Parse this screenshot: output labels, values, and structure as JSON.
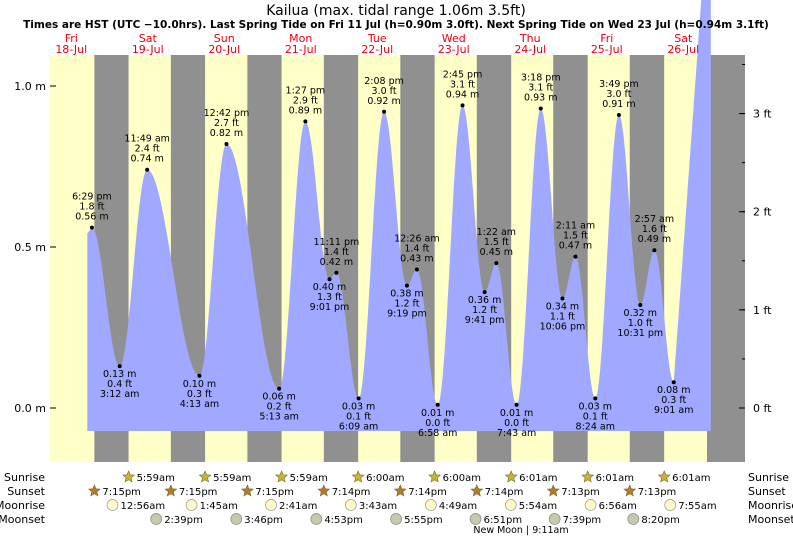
{
  "title": "Kailua (max. tidal range 1.06m 3.5ft)",
  "subtitle": "Times are HST (UTC −10.0hrs). Last Spring Tide on Fri 11 Jul (h=0.90m 3.0ft). Next Spring Tide on Wed 23 Jul (h=0.94m 3.1ft)",
  "colors": {
    "day": "#ffffc8",
    "night": "#909090",
    "tide": "#a0a8ff",
    "day_label": "#e8000c",
    "sun_icon": "#c8b432",
    "sunset_icon": "#b47832",
    "moonrise_icon": "#fffac8",
    "moonset_icon": "#c8c8aa"
  },
  "chart_data": {
    "type": "area",
    "title": "Kailua (max. tidal range 1.06m 3.5ft)",
    "y_left_unit": "m",
    "y_right_unit": "ft",
    "ylim_m": [
      -0.08,
      1.08
    ],
    "left_ticks": [
      "1.0 m",
      "0.5 m",
      "0.0 m"
    ],
    "left_tick_values": [
      1.0,
      0.5,
      0.0
    ],
    "right_ticks": [
      "3 ft",
      "2 ft",
      "1 ft",
      "0 ft"
    ],
    "right_tick_values_ft": [
      3,
      2,
      1,
      0
    ],
    "days": [
      {
        "dow": "Fri",
        "date": "18-Jul"
      },
      {
        "dow": "Sat",
        "date": "19-Jul"
      },
      {
        "dow": "Sun",
        "date": "20-Jul"
      },
      {
        "dow": "Mon",
        "date": "21-Jul"
      },
      {
        "dow": "Tue",
        "date": "22-Jul"
      },
      {
        "dow": "Wed",
        "date": "23-Jul"
      },
      {
        "dow": "Thu",
        "date": "24-Jul"
      },
      {
        "dow": "Fri",
        "date": "25-Jul"
      },
      {
        "dow": "Sat",
        "date": "26-Jul"
      }
    ],
    "tides": [
      {
        "type": "high",
        "day": 0,
        "time": "6:29 pm",
        "m": 0.56,
        "ft": "1.8 ft",
        "label_m": "0.56 m"
      },
      {
        "type": "low",
        "day": 1,
        "time": "3:12 am",
        "m": 0.13,
        "ft": "0.4 ft",
        "label_m": "0.13 m"
      },
      {
        "type": "high",
        "day": 1,
        "time": "11:49 am",
        "m": 0.74,
        "ft": "2.4 ft",
        "label_m": "0.74 m"
      },
      {
        "type": "low",
        "day": 2,
        "time": "4:13 am",
        "m": 0.1,
        "ft": "0.3 ft",
        "label_m": "0.10 m"
      },
      {
        "type": "high",
        "day": 2,
        "time": "12:42 pm",
        "m": 0.82,
        "ft": "2.7 ft",
        "label_m": "0.82 m"
      },
      {
        "type": "low",
        "day": 3,
        "time": "5:13 am",
        "m": 0.06,
        "ft": "0.2 ft",
        "label_m": "0.06 m"
      },
      {
        "type": "high",
        "day": 3,
        "time": "1:27 pm",
        "m": 0.89,
        "ft": "2.9 ft",
        "label_m": "0.89 m"
      },
      {
        "type": "low",
        "day": 3,
        "time": "9:01 pm",
        "m": 0.4,
        "ft": "1.3 ft",
        "label_m": "0.40 m"
      },
      {
        "type": "high",
        "day": 3,
        "time": "11:11 pm",
        "m": 0.42,
        "ft": "1.4 ft",
        "label_m": "0.42 m"
      },
      {
        "type": "low",
        "day": 4,
        "time": "6:09 am",
        "m": 0.03,
        "ft": "0.1 ft",
        "label_m": "0.03 m"
      },
      {
        "type": "high",
        "day": 4,
        "time": "2:08 pm",
        "m": 0.92,
        "ft": "3.0 ft",
        "label_m": "0.92 m"
      },
      {
        "type": "low",
        "day": 4,
        "time": "9:19 pm",
        "m": 0.38,
        "ft": "1.2 ft",
        "label_m": "0.38 m"
      },
      {
        "type": "high",
        "day": 5,
        "time": "12:26 am",
        "m": 0.43,
        "ft": "1.4 ft",
        "label_m": "0.43 m"
      },
      {
        "type": "low",
        "day": 5,
        "time": "6:58 am",
        "m": 0.01,
        "ft": "0.0 ft",
        "label_m": "0.01 m"
      },
      {
        "type": "high",
        "day": 5,
        "time": "2:45 pm",
        "m": 0.94,
        "ft": "3.1 ft",
        "label_m": "0.94 m"
      },
      {
        "type": "low",
        "day": 5,
        "time": "9:41 pm",
        "m": 0.36,
        "ft": "1.2 ft",
        "label_m": "0.36 m"
      },
      {
        "type": "high",
        "day": 6,
        "time": "1:22 am",
        "m": 0.45,
        "ft": "1.5 ft",
        "label_m": "0.45 m"
      },
      {
        "type": "low",
        "day": 6,
        "time": "7:43 am",
        "m": 0.01,
        "ft": "0.0 ft",
        "label_m": "0.01 m"
      },
      {
        "type": "high",
        "day": 6,
        "time": "3:18 pm",
        "m": 0.93,
        "ft": "3.1 ft",
        "label_m": "0.93 m"
      },
      {
        "type": "low",
        "day": 6,
        "time": "10:06 pm",
        "m": 0.34,
        "ft": "1.1 ft",
        "label_m": "0.34 m"
      },
      {
        "type": "high",
        "day": 7,
        "time": "2:11 am",
        "m": 0.47,
        "ft": "1.5 ft",
        "label_m": "0.47 m"
      },
      {
        "type": "low",
        "day": 7,
        "time": "8:24 am",
        "m": 0.03,
        "ft": "0.1 ft",
        "label_m": "0.03 m"
      },
      {
        "type": "high",
        "day": 7,
        "time": "3:49 pm",
        "m": 0.91,
        "ft": "3.0 ft",
        "label_m": "0.91 m"
      },
      {
        "type": "low",
        "day": 7,
        "time": "10:31 pm",
        "m": 0.32,
        "ft": "1.0 ft",
        "label_m": "0.32 m"
      },
      {
        "type": "high",
        "day": 8,
        "time": "2:57 am",
        "m": 0.49,
        "ft": "1.6 ft",
        "label_m": "0.49 m"
      },
      {
        "type": "low",
        "day": 8,
        "time": "9:01 am",
        "m": 0.08,
        "ft": "0.3 ft",
        "label_m": "0.08 m"
      }
    ],
    "sun_moon": {
      "row_labels": [
        "Sunrise",
        "Sunset",
        "Moonrise",
        "Moonset"
      ],
      "sunrise": [
        {
          "day": 1,
          "time": "5:59am"
        },
        {
          "day": 2,
          "time": "5:59am"
        },
        {
          "day": 3,
          "time": "5:59am"
        },
        {
          "day": 4,
          "time": "6:00am"
        },
        {
          "day": 5,
          "time": "6:00am"
        },
        {
          "day": 6,
          "time": "6:01am"
        },
        {
          "day": 7,
          "time": "6:01am"
        },
        {
          "day": 8,
          "time": "6:01am"
        }
      ],
      "sunset": [
        {
          "day": 0,
          "time": "7:15pm"
        },
        {
          "day": 1,
          "time": "7:15pm"
        },
        {
          "day": 2,
          "time": "7:15pm"
        },
        {
          "day": 3,
          "time": "7:14pm"
        },
        {
          "day": 4,
          "time": "7:14pm"
        },
        {
          "day": 5,
          "time": "7:14pm"
        },
        {
          "day": 6,
          "time": "7:13pm"
        },
        {
          "day": 7,
          "time": "7:13pm"
        }
      ],
      "moonrise": [
        {
          "day": 1,
          "time": "12:56am"
        },
        {
          "day": 2,
          "time": "1:45am"
        },
        {
          "day": 3,
          "time": "2:41am"
        },
        {
          "day": 4,
          "time": "3:43am"
        },
        {
          "day": 5,
          "time": "4:49am"
        },
        {
          "day": 6,
          "time": "5:54am"
        },
        {
          "day": 7,
          "time": "6:56am"
        },
        {
          "day": 8,
          "time": "7:55am"
        }
      ],
      "moonset": [
        {
          "day": 1,
          "time": "2:39pm"
        },
        {
          "day": 2,
          "time": "3:46pm"
        },
        {
          "day": 3,
          "time": "4:53pm"
        },
        {
          "day": 4,
          "time": "5:55pm"
        },
        {
          "day": 5,
          "time": "6:51pm"
        },
        {
          "day": 6,
          "time": "7:39pm"
        },
        {
          "day": 7,
          "time": "8:20pm"
        }
      ],
      "moon_phase_note": "New Moon | 9:11am"
    }
  }
}
